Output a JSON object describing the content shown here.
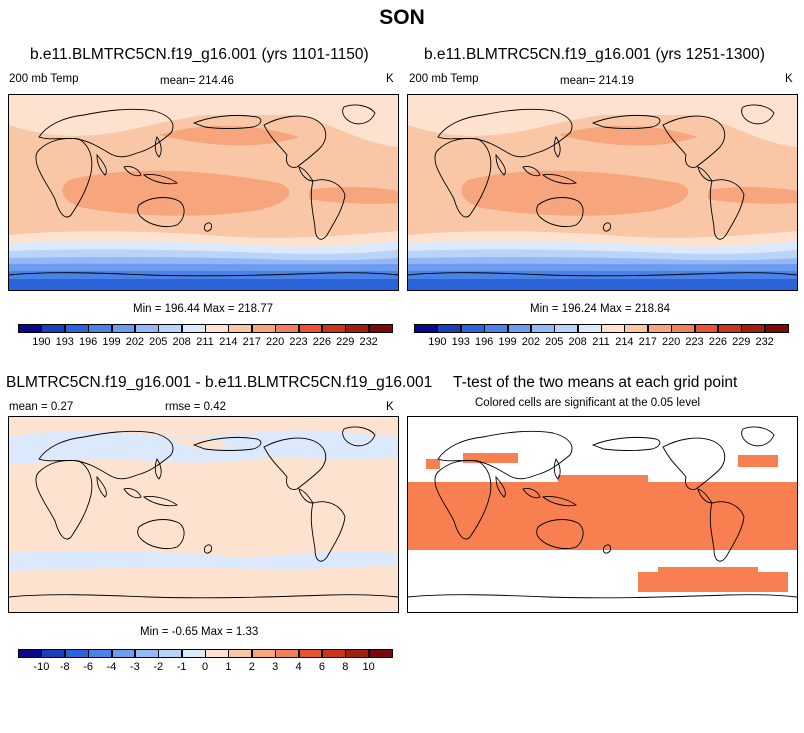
{
  "figure": {
    "title": "SON"
  },
  "panels": [
    {
      "title": "b.e11.BLMTRC5CN.f19_g16.001 (yrs 1101-1150)",
      "left_label": "200 mb Temp",
      "center_label": "mean= 214.46",
      "right_label": "K",
      "stats": "Min = 196.44 Max = 218.77"
    },
    {
      "title": "b.e11.BLMTRC5CN.f19_g16.001 (yrs 1251-1300)",
      "left_label": "200 mb Temp",
      "center_label": "mean= 214.19",
      "right_label": "K",
      "stats": "Min = 196.24 Max = 218.84"
    },
    {
      "title": "BLMTRC5CN.f19_g16.001 - b.e11.BLMTRC5CN.f19_g16.001",
      "left_label": "mean =   0.27",
      "center_label": "rmse =   0.42",
      "right_label": "K",
      "stats": "Min =  -0.65 Max =   1.33"
    },
    {
      "title": "T-test of the two means at each grid point",
      "subtitle": "Colored cells are significant at the 0.05 level"
    }
  ],
  "colorbars": {
    "temp": {
      "labels": [
        "190",
        "193",
        "196",
        "199",
        "202",
        "205",
        "208",
        "211",
        "214",
        "217",
        "220",
        "223",
        "226",
        "229",
        "232"
      ],
      "colors": [
        "#08088a",
        "#1a3fb8",
        "#2b63d9",
        "#4a82e8",
        "#6b9cf0",
        "#93b8f5",
        "#bad3f8",
        "#dce8fb",
        "#fde3cf",
        "#f9c7a6",
        "#f6a57d",
        "#f1805a",
        "#e8542f",
        "#c7351b",
        "#a02010",
        "#7a0a0a"
      ]
    },
    "diff": {
      "labels": [
        "-10",
        "-8",
        "-6",
        "-4",
        "-3",
        "-2",
        "-1",
        "0",
        "1",
        "2",
        "3",
        "4",
        "6",
        "8",
        "10"
      ],
      "colors": [
        "#08088a",
        "#1a3fb8",
        "#2b63d9",
        "#4a82e8",
        "#6b9cf0",
        "#93b8f5",
        "#bad3f8",
        "#dce8fb",
        "#fde3cf",
        "#f9c7a6",
        "#f6a57d",
        "#f1805a",
        "#e8542f",
        "#c7351b",
        "#a02010",
        "#7a0a0a"
      ]
    }
  },
  "chart_data": [
    {
      "type": "heatmap",
      "title": "b.e11.BLMTRC5CN.f19_g16.001 (yrs 1101-1150)",
      "variable": "200 mb Temp",
      "units": "K",
      "mean": 214.46,
      "min": 196.44,
      "max": 218.77,
      "levels": [
        190,
        193,
        196,
        199,
        202,
        205,
        208,
        211,
        214,
        217,
        220,
        223,
        226,
        229,
        232
      ]
    },
    {
      "type": "heatmap",
      "title": "b.e11.BLMTRC5CN.f19_g16.001 (yrs 1251-1300)",
      "variable": "200 mb Temp",
      "units": "K",
      "mean": 214.19,
      "min": 196.24,
      "max": 218.84,
      "levels": [
        190,
        193,
        196,
        199,
        202,
        205,
        208,
        211,
        214,
        217,
        220,
        223,
        226,
        229,
        232
      ]
    },
    {
      "type": "heatmap",
      "title": "BLMTRC5CN.f19_g16.001 - b.e11.BLMTRC5CN.f19_g16.001",
      "units": "K",
      "mean": 0.27,
      "rmse": 0.42,
      "min": -0.65,
      "max": 1.33,
      "levels": [
        -10,
        -8,
        -6,
        -4,
        -3,
        -2,
        -1,
        0,
        1,
        2,
        3,
        4,
        6,
        8,
        10
      ]
    },
    {
      "type": "heatmap",
      "title": "T-test of the two means at each grid point",
      "subtitle": "Colored cells are significant at the 0.05 level",
      "significance_level": 0.05
    }
  ]
}
